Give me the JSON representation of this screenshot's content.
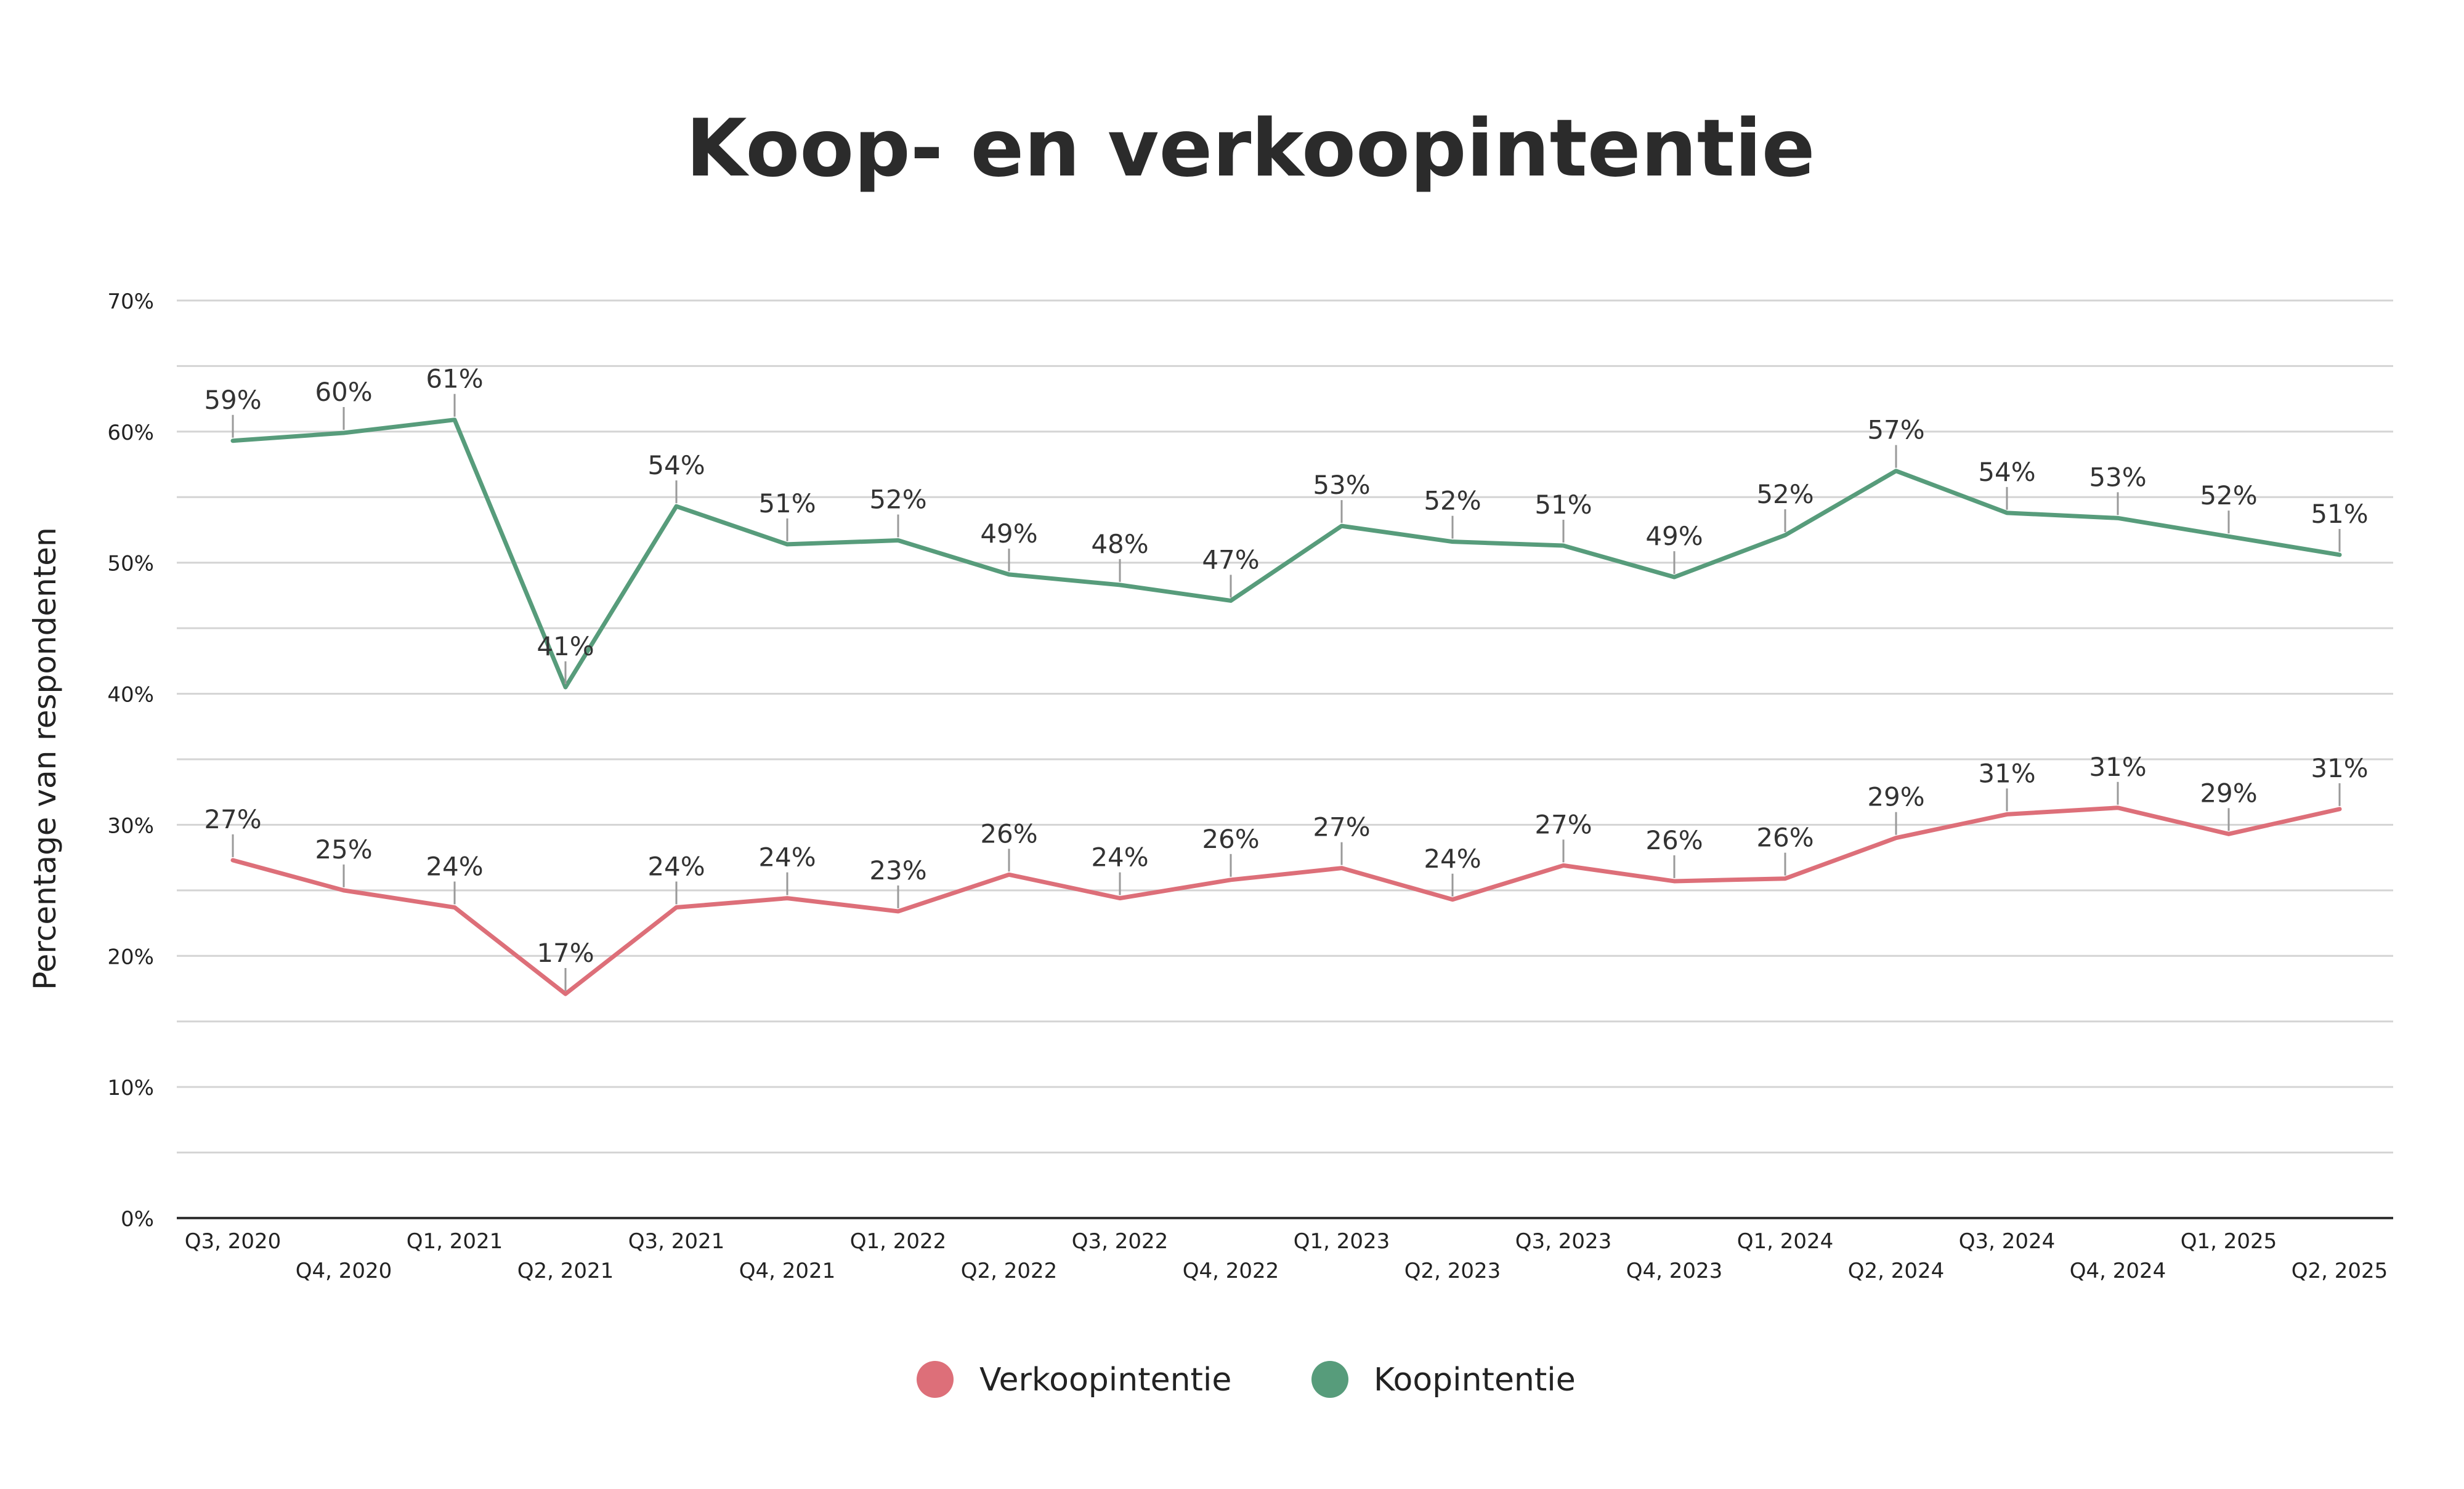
{
  "chart_data": {
    "type": "line",
    "title": "Koop- en verkoopintentie",
    "ylabel": "Percentage van respondenten",
    "xlabel": "",
    "ylim": [
      0,
      70
    ],
    "y_ticks": [
      "0%",
      "10%",
      "20%",
      "30%",
      "40%",
      "50%",
      "60%",
      "70%"
    ],
    "grid": true,
    "legend_position": "bottom",
    "categories": [
      "Q3, 2020",
      "Q4, 2020",
      "Q1, 2021",
      "Q2, 2021",
      "Q3, 2021",
      "Q4, 2021",
      "Q1, 2022",
      "Q2, 2022",
      "Q3, 2022",
      "Q4, 2022",
      "Q1, 2023",
      "Q2, 2023",
      "Q3, 2023",
      "Q4, 2023",
      "Q1, 2024",
      "Q2, 2024",
      "Q3, 2024",
      "Q4, 2024",
      "Q1, 2025",
      "Q2, 2025"
    ],
    "series": [
      {
        "name": "Verkoopintentie",
        "color": "#dd6f79",
        "values": [
          27.3,
          25.0,
          23.7,
          17.1,
          23.7,
          24.4,
          23.4,
          26.2,
          24.4,
          25.8,
          26.7,
          24.3,
          26.9,
          25.7,
          25.9,
          29.0,
          30.8,
          31.3,
          29.3,
          31.2
        ],
        "labels": [
          "27%",
          "25%",
          "24%",
          "17%",
          "24%",
          "24%",
          "23%",
          "26%",
          "24%",
          "26%",
          "27%",
          "24%",
          "27%",
          "26%",
          "26%",
          "29%",
          "31%",
          "31%",
          "29%",
          "31%"
        ]
      },
      {
        "name": "Koopintentie",
        "color": "#579c7b",
        "values": [
          59.3,
          59.9,
          60.9,
          40.5,
          54.3,
          51.4,
          51.7,
          49.1,
          48.3,
          47.1,
          52.8,
          51.6,
          51.3,
          48.9,
          52.1,
          57.0,
          53.8,
          53.4,
          52.0,
          50.6
        ],
        "labels": [
          "59%",
          "60%",
          "61%",
          "41%",
          "54%",
          "51%",
          "52%",
          "49%",
          "48%",
          "47%",
          "53%",
          "52%",
          "51%",
          "49%",
          "52%",
          "57%",
          "54%",
          "53%",
          "52%",
          "51%"
        ]
      }
    ]
  }
}
